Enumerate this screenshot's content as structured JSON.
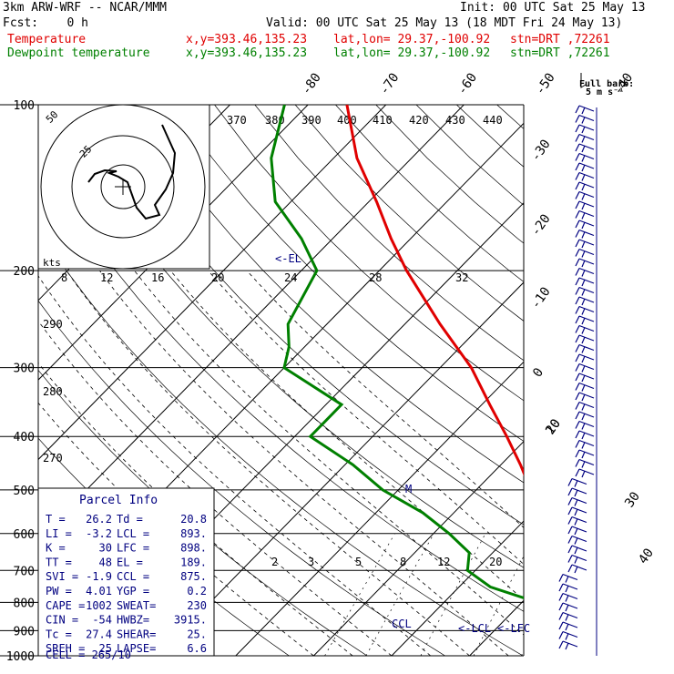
{
  "header": {
    "title": "3km ARW-WRF -- NCAR/MMM",
    "init": "Init: 00 UTC Sat 25 May 13",
    "fcst": "Fcst:    0 h",
    "valid": "Valid: 00 UTC Sat 25 May 13 (18 MDT Fri 24 May 13)",
    "temp_label": "Temperature",
    "dew_label": "Dewpoint temperature",
    "xy": "x,y=393.46,135.23",
    "latlon": "lat,lon= 29.37,-100.92",
    "stn": "stn=DRT ,72261",
    "barb_label_1": "Full barb:",
    "barb_label_2": "5 m s⁻¹"
  },
  "colors": {
    "temperature": "#e00000",
    "dewpoint": "#008000",
    "wind": "#000080",
    "grid": "#000000"
  },
  "chart_data": {
    "type": "line",
    "title": "",
    "ylabel": "",
    "pressure_ticks": [
      100,
      200,
      300,
      400,
      500,
      600,
      700,
      800,
      900,
      1000
    ],
    "temperature_ticks": [
      40,
      30,
      20,
      10,
      0,
      -10,
      -20,
      -30,
      -40,
      -50,
      -60,
      -70,
      -80
    ],
    "theta_labels": [
      "370",
      "380",
      "390",
      "400",
      "410",
      "420",
      "430",
      "440"
    ],
    "theta_e_labels": [
      "290",
      "280",
      "270"
    ],
    "mixing_ratio_labels": [
      "2",
      "3",
      "5",
      "8",
      "12",
      "20"
    ],
    "annotations": [
      "<-EL",
      "M",
      "CCL",
      "<-LCL",
      "<-LFC"
    ],
    "hodograph": {
      "units_label": "kts",
      "speed_ticks": [
        "8",
        "12",
        "16",
        "20",
        "24",
        "28",
        "32"
      ],
      "ring_labels": [
        "50",
        "25"
      ]
    },
    "series": [
      {
        "name": "Temperature",
        "points": [
          [
            1000,
            26.2
          ],
          [
            975,
            24.5
          ],
          [
            950,
            22.8
          ],
          [
            925,
            22.5
          ],
          [
            900,
            22.0
          ],
          [
            875,
            21.0
          ],
          [
            850,
            19.8
          ],
          [
            800,
            16.3
          ],
          [
            750,
            14.0
          ],
          [
            700,
            10.5
          ],
          [
            650,
            7.5
          ],
          [
            600,
            4.3
          ],
          [
            550,
            1.0
          ],
          [
            500,
            -3.0
          ],
          [
            450,
            -7.5
          ],
          [
            400,
            -12.8
          ],
          [
            350,
            -19.0
          ],
          [
            300,
            -26.0
          ],
          [
            250,
            -35.5
          ],
          [
            200,
            -46.5
          ],
          [
            175,
            -52.5
          ],
          [
            150,
            -59.0
          ],
          [
            125,
            -67.0
          ],
          [
            100,
            -75.0
          ]
        ]
      },
      {
        "name": "Dewpoint temperature",
        "points": [
          [
            1000,
            20.8
          ],
          [
            975,
            20.5
          ],
          [
            950,
            20.2
          ],
          [
            925,
            19.5
          ],
          [
            900,
            19.0
          ],
          [
            875,
            18.0
          ],
          [
            850,
            15.5
          ],
          [
            800,
            12.0
          ],
          [
            750,
            4.0
          ],
          [
            700,
            -1.0
          ],
          [
            650,
            -3.0
          ],
          [
            600,
            -8.0
          ],
          [
            550,
            -14.0
          ],
          [
            500,
            -22.0
          ],
          [
            450,
            -29.0
          ],
          [
            400,
            -38.0
          ],
          [
            375,
            -38.0
          ],
          [
            350,
            -38.0
          ],
          [
            300,
            -50.0
          ],
          [
            275,
            -52.0
          ],
          [
            250,
            -55.0
          ],
          [
            200,
            -58.0
          ],
          [
            175,
            -64.0
          ],
          [
            150,
            -72.0
          ],
          [
            125,
            -78.0
          ],
          [
            100,
            -83.0
          ]
        ]
      }
    ]
  },
  "parcel_info": {
    "title": "Parcel Info",
    "rows": [
      [
        "T  =",
        "26.2",
        "Td =",
        "20.8"
      ],
      [
        "LI =",
        "-3.2",
        "LCL =",
        "893."
      ],
      [
        "K  =",
        "30",
        "LFC =",
        "898."
      ],
      [
        "TT =",
        "48",
        "EL =",
        "189."
      ],
      [
        "SVI =",
        "-1.9",
        "CCL =",
        "875."
      ],
      [
        "PW =",
        "4.01",
        "YGP =",
        "0.2"
      ],
      [
        "CAPE =",
        "1002",
        "SWEAT=",
        "230"
      ],
      [
        "CIN =",
        "-54",
        "HWBZ=",
        "3915."
      ],
      [
        "Tc =",
        "27.4",
        "SHEAR=",
        "25."
      ],
      [
        "SREH =",
        "25",
        "LAPSE=",
        "6.6"
      ]
    ],
    "cell": "CELL = 265/10"
  }
}
